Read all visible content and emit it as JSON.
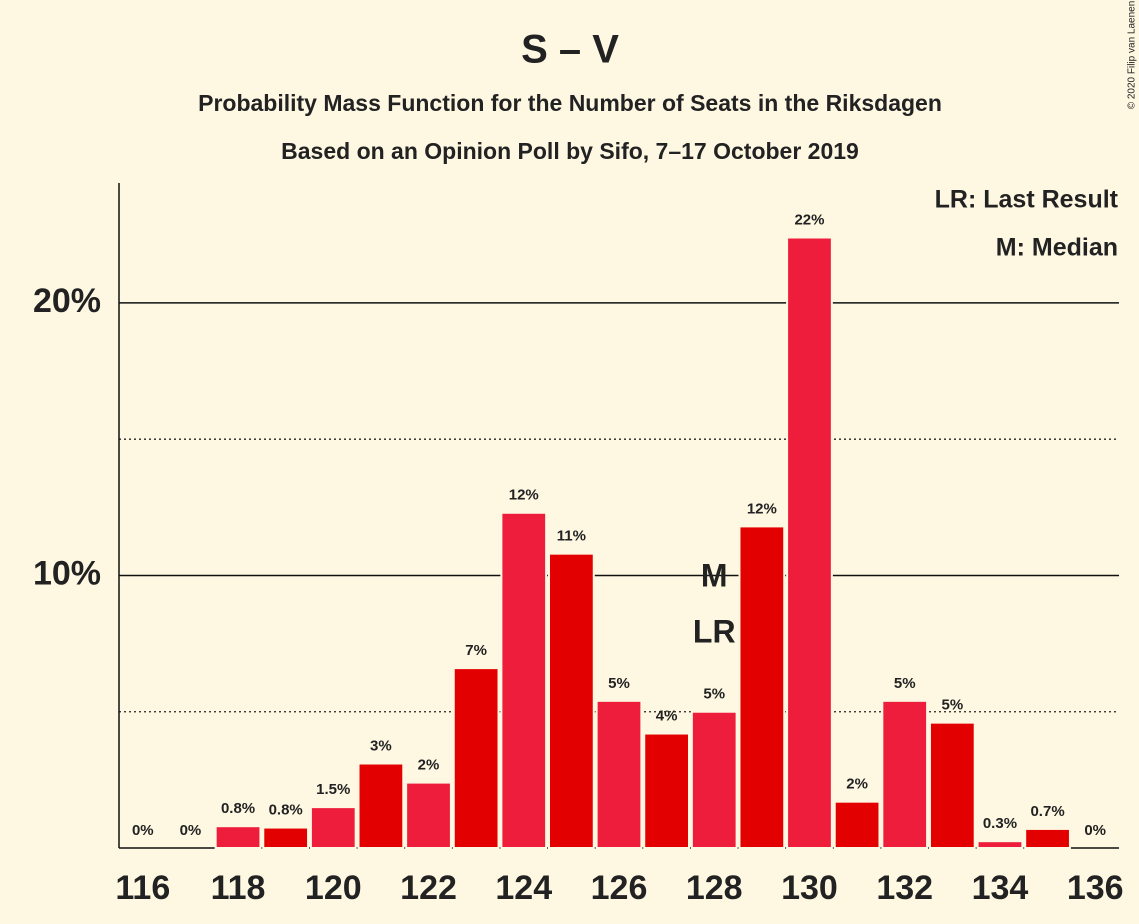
{
  "chart_data": {
    "type": "bar",
    "title": "S – V",
    "subtitle": "Probability Mass Function for the Number of Seats in the Riksdagen",
    "subtitle2": "Based on an Opinion Poll by Sifo, 7–17 October 2019",
    "copyright": "© 2020 Filip van Laenen",
    "x": [
      116,
      117,
      118,
      119,
      120,
      121,
      122,
      123,
      124,
      125,
      126,
      127,
      128,
      129,
      130,
      131,
      132,
      133,
      134,
      135,
      136
    ],
    "values": [
      0,
      0,
      0.8,
      0.75,
      1.5,
      3.1,
      2.4,
      6.6,
      12.3,
      10.8,
      5.4,
      4.2,
      5.0,
      11.8,
      22.4,
      1.7,
      5.4,
      4.6,
      0.25,
      0.7,
      0
    ],
    "value_labels": [
      "0%",
      "0%",
      "0.8%",
      "0.8%",
      "1.5%",
      "3%",
      "2%",
      "7%",
      "12%",
      "11%",
      "5%",
      "4%",
      "5%",
      "12%",
      "22%",
      "2%",
      "5%",
      "5%",
      "0.3%",
      "0.7%",
      "0%"
    ],
    "colors": [
      "#ed1d3b",
      "#e30000"
    ],
    "xlim": [
      115.5,
      136.5
    ],
    "xticks": [
      116,
      118,
      120,
      122,
      124,
      126,
      128,
      130,
      132,
      134,
      136
    ],
    "ylim": [
      0,
      24.4
    ],
    "yticks": [
      {
        "value": 10,
        "label": "10%"
      },
      {
        "value": 20,
        "label": "20%"
      }
    ],
    "minor_yticks": [
      5,
      15
    ],
    "grid": true,
    "median": {
      "label": "M",
      "x": 128
    },
    "last_result": {
      "label": "LR",
      "x": 128
    },
    "legend_notes": [
      "LR: Last Result",
      "M: Median"
    ]
  }
}
